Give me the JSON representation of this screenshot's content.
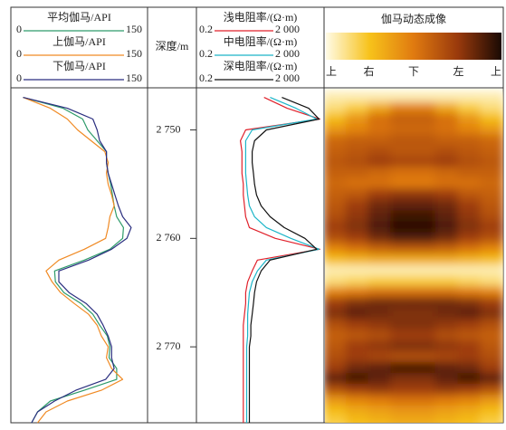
{
  "chart_data": [
    {
      "type": "line",
      "ylim": [
        2746.2,
        2777
      ],
      "x": [
        2747,
        2748,
        2749,
        2750,
        2751,
        2752,
        2753,
        2754,
        2755,
        2756,
        2757,
        2758,
        2759,
        2760,
        2761,
        2762,
        2763,
        2764,
        2765,
        2766,
        2767,
        2768,
        2769,
        2770,
        2771,
        2772,
        2773,
        2774,
        2775,
        2776,
        2777
      ],
      "series": [
        {
          "name": "平均伽马/API",
          "color": "#2e9b6a",
          "xlim": [
            0,
            150
          ],
          "xticks": [
            0,
            150
          ],
          "values": [
            8,
            55,
            78,
            84,
            95,
            106,
            106,
            108,
            111,
            113,
            115,
            118,
            126,
            125,
            110,
            80,
            45,
            46,
            56,
            76,
            90,
            98,
            107,
            110,
            109,
            118,
            118,
            80,
            40,
            25,
            18
          ]
        },
        {
          "name": "上伽马/API",
          "color": "#f08a24",
          "xlim": [
            0,
            150
          ],
          "xticks": [
            0,
            150
          ],
          "values": [
            8,
            40,
            60,
            72,
            88,
            104,
            108,
            106,
            108,
            112,
            115,
            110,
            108,
            105,
            80,
            50,
            35,
            42,
            52,
            68,
            85,
            95,
            100,
            108,
            106,
            112,
            125,
            100,
            60,
            35,
            25
          ]
        },
        {
          "name": "下伽马/API",
          "color": "#2b2f80",
          "xlim": [
            0,
            150
          ],
          "xticks": [
            0,
            150
          ],
          "values": [
            8,
            60,
            90,
            95,
            98,
            106,
            106,
            108,
            112,
            116,
            120,
            125,
            135,
            130,
            112,
            85,
            50,
            50,
            62,
            82,
            95,
            102,
            108,
            112,
            112,
            115,
            105,
            70,
            45,
            25,
            18
          ]
        }
      ]
    },
    {
      "type": "depth-axis",
      "ylabel": "深度/m",
      "ylim": [
        2746.2,
        2777
      ],
      "yticks": [
        {
          "value": 2750,
          "label": "2 750"
        },
        {
          "value": 2760,
          "label": "2 760"
        },
        {
          "value": 2770,
          "label": "2 770"
        }
      ]
    },
    {
      "type": "line",
      "xscale": "log",
      "ylim": [
        2746.2,
        2777
      ],
      "x": [
        2747,
        2748,
        2749,
        2750,
        2751,
        2752,
        2753,
        2754,
        2755,
        2756,
        2757,
        2758,
        2759,
        2760,
        2761,
        2762,
        2763,
        2764,
        2765,
        2766,
        2767,
        2768,
        2769,
        2770,
        2771,
        2772,
        2773,
        2774,
        2775,
        2776,
        2777
      ],
      "series": [
        {
          "name": "浅电阻率/(Ω·m)",
          "color": "#e0202a",
          "xlim": [
            0.2,
            2000
          ],
          "xticks": [
            0.2,
            {
              "value": 2000,
              "label": "2 000"
            }
          ],
          "values": [
            25,
            150,
            1900,
            6,
            4,
            4.5,
            4.5,
            4.5,
            5,
            5,
            5.5,
            6,
            8,
            60,
            1900,
            15,
            10,
            7,
            6,
            6,
            5.5,
            5,
            5,
            5,
            5,
            5,
            5,
            5,
            5,
            5,
            5
          ]
        },
        {
          "name": "中电阻率/(Ω·m)",
          "color": "#1cb5c8",
          "xlim": [
            0.2,
            2000
          ],
          "xticks": [
            0.2,
            {
              "value": 2000,
              "label": "2 000"
            }
          ],
          "values": [
            40,
            300,
            1500,
            10,
            6,
            6,
            6,
            6,
            6.5,
            7,
            8,
            12,
            30,
            200,
            1800,
            30,
            15,
            10,
            8,
            7.5,
            7,
            7,
            7,
            6.5,
            6.5,
            6.5,
            6.5,
            6.5,
            6.5,
            6.5,
            6.5
          ]
        },
        {
          "name": "深电阻率/(Ω·m)",
          "color": "#111111",
          "xlim": [
            0.2,
            2000
          ],
          "xticks": [
            0.2,
            {
              "value": 2000,
              "label": "2 000"
            }
          ],
          "values": [
            100,
            800,
            1800,
            30,
            12,
            10,
            10,
            11,
            12,
            14,
            20,
            40,
            120,
            600,
            1500,
            40,
            20,
            14,
            12,
            11,
            10,
            9,
            9,
            8,
            8,
            8,
            8,
            8,
            8,
            8,
            8
          ]
        }
      ]
    },
    {
      "type": "heatmap",
      "title": "伽马动态成像",
      "colors": [
        "#fffbe6",
        "#f7c21a",
        "#e07a10",
        "#9a3a0c",
        "#1a0a04"
      ],
      "zlim": [
        0,
        150
      ],
      "xlim": [
        0,
        360
      ],
      "xticks": [
        {
          "value": 0,
          "label": "上"
        },
        {
          "value": 90,
          "label": "右"
        },
        {
          "value": 180,
          "label": "下"
        },
        {
          "value": 270,
          "label": "左"
        },
        {
          "value": 360,
          "label": "上"
        }
      ],
      "x": [
        22.5,
        67.5,
        112.5,
        157.5,
        202.5,
        247.5,
        292.5,
        337.5
      ],
      "ylim": [
        2746.2,
        2777
      ],
      "y": [
        2747,
        2748,
        2749,
        2750,
        2751,
        2752,
        2753,
        2754,
        2755,
        2756,
        2757,
        2758,
        2759,
        2760,
        2761,
        2762,
        2763,
        2764,
        2765,
        2766,
        2767,
        2768,
        2769,
        2770,
        2771,
        2772,
        2773,
        2774,
        2775,
        2776,
        2777
      ],
      "values": [
        [
          10,
          10,
          10,
          10,
          10,
          10,
          10,
          10
        ],
        [
          20,
          30,
          50,
          70,
          70,
          50,
          30,
          20
        ],
        [
          40,
          60,
          80,
          90,
          90,
          80,
          60,
          40
        ],
        [
          60,
          70,
          80,
          85,
          85,
          80,
          70,
          60
        ],
        [
          85,
          90,
          90,
          95,
          95,
          90,
          90,
          85
        ],
        [
          90,
          95,
          100,
          95,
          95,
          100,
          95,
          90
        ],
        [
          95,
          100,
          110,
          105,
          105,
          110,
          100,
          95
        ],
        [
          90,
          90,
          85,
          80,
          80,
          85,
          90,
          90
        ],
        [
          85,
          80,
          80,
          75,
          75,
          80,
          80,
          85
        ],
        [
          90,
          95,
          110,
          115,
          115,
          110,
          95,
          90
        ],
        [
          95,
          110,
          125,
          130,
          130,
          125,
          110,
          95
        ],
        [
          100,
          115,
          130,
          140,
          140,
          130,
          115,
          100
        ],
        [
          110,
          120,
          135,
          145,
          145,
          135,
          120,
          110
        ],
        [
          100,
          110,
          125,
          135,
          135,
          125,
          110,
          100
        ],
        [
          70,
          80,
          90,
          95,
          95,
          90,
          80,
          70
        ],
        [
          40,
          45,
          50,
          50,
          50,
          50,
          45,
          40
        ],
        [
          10,
          10,
          10,
          10,
          10,
          10,
          10,
          10
        ],
        [
          20,
          25,
          30,
          30,
          30,
          30,
          25,
          20
        ],
        [
          70,
          75,
          80,
          80,
          80,
          80,
          75,
          70
        ],
        [
          110,
          120,
          125,
          125,
          125,
          125,
          120,
          110
        ],
        [
          120,
          130,
          125,
          120,
          120,
          125,
          130,
          120
        ],
        [
          100,
          110,
          115,
          120,
          120,
          115,
          110,
          100
        ],
        [
          90,
          95,
          100,
          110,
          110,
          100,
          95,
          90
        ],
        [
          95,
          110,
          115,
          120,
          120,
          115,
          110,
          95
        ],
        [
          100,
          110,
          105,
          100,
          100,
          105,
          110,
          100
        ],
        [
          110,
          125,
          130,
          140,
          140,
          130,
          125,
          110
        ],
        [
          130,
          140,
          130,
          120,
          120,
          130,
          140,
          130
        ],
        [
          100,
          110,
          115,
          110,
          110,
          115,
          110,
          100
        ],
        [
          60,
          70,
          75,
          80,
          80,
          75,
          70,
          60
        ],
        [
          40,
          50,
          55,
          60,
          60,
          55,
          50,
          40
        ],
        [
          30,
          40,
          45,
          50,
          50,
          45,
          40,
          30
        ]
      ]
    }
  ]
}
